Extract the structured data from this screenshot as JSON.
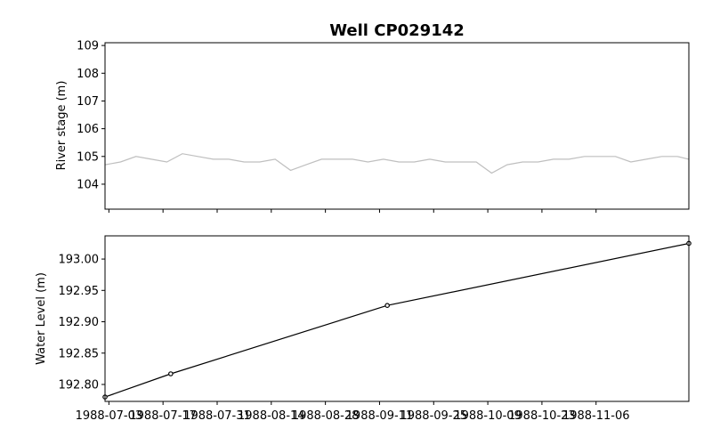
{
  "chart_data": [
    {
      "type": "line",
      "title": "Well CP029142",
      "xlabel": "",
      "ylabel": "River stage (m)",
      "ylim": [
        103.1,
        109.1
      ],
      "y_ticks": [
        "104",
        "105",
        "106",
        "107",
        "108",
        "109"
      ],
      "x_range": [
        "1988-07-02",
        "1988-11-30"
      ],
      "series": [
        {
          "color": "#bfbfbf",
          "x": [
            "1988-07-02",
            "1988-07-06",
            "1988-07-10",
            "1988-07-14",
            "1988-07-18",
            "1988-07-22",
            "1988-07-26",
            "1988-07-30",
            "1988-08-03",
            "1988-08-07",
            "1988-08-11",
            "1988-08-15",
            "1988-08-19",
            "1988-08-23",
            "1988-08-27",
            "1988-08-31",
            "1988-09-04",
            "1988-09-08",
            "1988-09-12",
            "1988-09-16",
            "1988-09-20",
            "1988-09-24",
            "1988-09-28",
            "1988-10-02",
            "1988-10-06",
            "1988-10-10",
            "1988-10-14",
            "1988-10-18",
            "1988-10-22",
            "1988-10-26",
            "1988-10-30",
            "1988-11-03",
            "1988-11-07",
            "1988-11-11",
            "1988-11-15",
            "1988-11-19",
            "1988-11-23",
            "1988-11-27",
            "1988-11-30"
          ],
          "values": [
            104.7,
            104.8,
            105.0,
            104.9,
            104.8,
            105.1,
            105.0,
            104.9,
            104.9,
            104.8,
            104.8,
            104.9,
            104.5,
            104.7,
            104.9,
            104.9,
            104.9,
            104.8,
            104.9,
            104.8,
            104.8,
            104.9,
            104.8,
            104.8,
            104.8,
            104.4,
            104.7,
            104.8,
            104.8,
            104.9,
            104.9,
            105.0,
            105.0,
            105.0,
            104.8,
            104.9,
            105.0,
            105.0,
            104.9
          ]
        }
      ]
    },
    {
      "type": "line",
      "xlabel": "",
      "ylabel": "Water Level (m)",
      "ylim": [
        192.773,
        193.037
      ],
      "y_ticks": [
        "192.80",
        "192.85",
        "192.90",
        "192.95",
        "193.00"
      ],
      "x_range": [
        "1988-07-02",
        "1988-11-30"
      ],
      "x_ticks": [
        "1988-07-03",
        "1988-07-17",
        "1988-07-31",
        "1988-08-14",
        "1988-08-28",
        "1988-09-11",
        "1988-09-25",
        "1988-10-09",
        "1988-10-23",
        "1988-11-06"
      ],
      "series": [
        {
          "color": "#000000",
          "marker": "circle",
          "x": [
            "1988-07-02",
            "1988-07-19",
            "1988-09-13",
            "1988-11-30"
          ],
          "values": [
            192.78,
            192.817,
            192.926,
            193.025
          ]
        }
      ]
    }
  ]
}
